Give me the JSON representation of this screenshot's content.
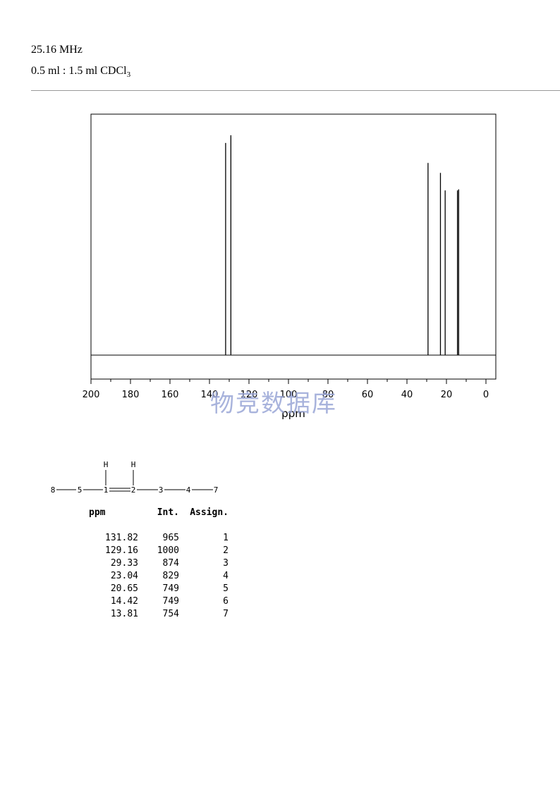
{
  "header": {
    "frequency": "25.16 MHz",
    "solvent_prefix": "0.5 ml : 1.5 ml CDCl",
    "solvent_subscript": "3"
  },
  "watermark": "物竞数据库",
  "chart_data": {
    "type": "line",
    "xlabel": "ppm",
    "xlim": [
      200,
      -5
    ],
    "x_ticks": [
      200,
      180,
      160,
      140,
      120,
      100,
      80,
      60,
      40,
      20,
      0
    ],
    "x_reversed": true,
    "grid": false,
    "peaks": [
      {
        "ppm": 131.82,
        "intensity": 965
      },
      {
        "ppm": 129.16,
        "intensity": 1000
      },
      {
        "ppm": 29.33,
        "intensity": 874
      },
      {
        "ppm": 23.04,
        "intensity": 829
      },
      {
        "ppm": 20.65,
        "intensity": 749
      },
      {
        "ppm": 14.42,
        "intensity": 749
      },
      {
        "ppm": 13.81,
        "intensity": 754
      }
    ]
  },
  "structure": {
    "atoms": [
      "8",
      "5",
      "1",
      "2",
      "3",
      "4",
      "7"
    ],
    "hydrogens": [
      "H",
      "H"
    ]
  },
  "table": {
    "headers": {
      "ppm": "ppm",
      "int": "Int.",
      "assign": "Assign."
    },
    "rows": [
      {
        "ppm": "131.82",
        "int": "965",
        "assign": "1"
      },
      {
        "ppm": "129.16",
        "int": "1000",
        "assign": "2"
      },
      {
        "ppm": "29.33",
        "int": "874",
        "assign": "3"
      },
      {
        "ppm": "23.04",
        "int": "829",
        "assign": "4"
      },
      {
        "ppm": "20.65",
        "int": "749",
        "assign": "5"
      },
      {
        "ppm": "14.42",
        "int": "749",
        "assign": "6"
      },
      {
        "ppm": "13.81",
        "int": "754",
        "assign": "7"
      }
    ]
  }
}
